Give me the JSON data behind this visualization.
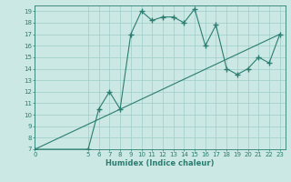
{
  "xlabel": "Humidex (Indice chaleur)",
  "xlim": [
    0,
    23.5
  ],
  "ylim": [
    7,
    19.5
  ],
  "yticks": [
    7,
    8,
    9,
    10,
    11,
    12,
    13,
    14,
    15,
    16,
    17,
    18,
    19
  ],
  "xticks": [
    0,
    5,
    6,
    7,
    8,
    9,
    10,
    11,
    12,
    13,
    14,
    15,
    16,
    17,
    18,
    19,
    20,
    21,
    22,
    23
  ],
  "line1_x": [
    0,
    5,
    6,
    7,
    8,
    9,
    10,
    11,
    12,
    13,
    14,
    15,
    16,
    17,
    18,
    19,
    20,
    21,
    22,
    23
  ],
  "line1_y": [
    7,
    7,
    10.5,
    12,
    10.5,
    17,
    19,
    18.2,
    18.5,
    18.5,
    18,
    19.2,
    16,
    17.8,
    14,
    13.5,
    14,
    15,
    14.5,
    17
  ],
  "line2_x": [
    0,
    23
  ],
  "line2_y": [
    7,
    17
  ],
  "line_color": "#2a7d70",
  "bg_color": "#cce8e4",
  "grid_color": "#9ecdc8",
  "tick_fontsize": 5,
  "xlabel_fontsize": 6,
  "marker": "+",
  "markersize": 5,
  "linewidth": 0.8
}
